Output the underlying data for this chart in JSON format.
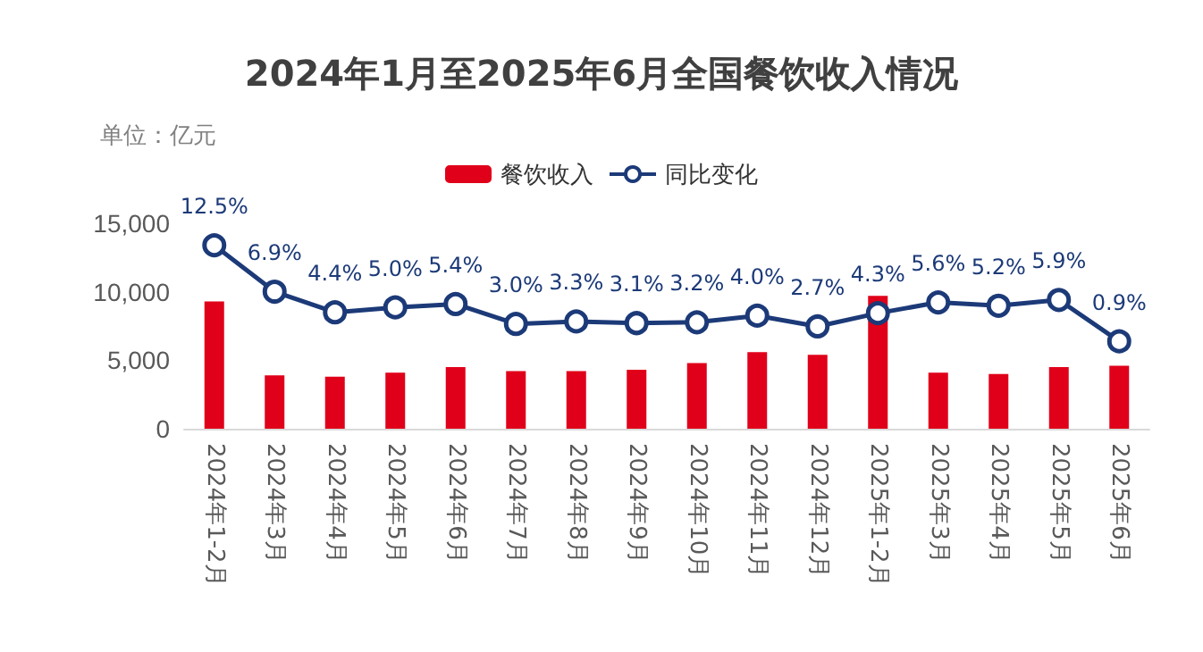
{
  "chart_data": {
    "type": "bar",
    "title": "2024年1月至2025年6月全国餐饮收入情况",
    "ylabel": "单位：亿元",
    "categories": [
      "2024年1-2月",
      "2024年3月",
      "2024年4月",
      "2024年5月",
      "2024年6月",
      "2024年7月",
      "2024年8月",
      "2024年9月",
      "2024年10月",
      "2024年11月",
      "2024年12月",
      "2025年1-2月",
      "2025年3月",
      "2025年4月",
      "2025年5月",
      "2025年6月"
    ],
    "series": [
      {
        "name": "餐饮收入",
        "color": "#e0001a",
        "values": [
          9300,
          3900,
          3800,
          4100,
          4500,
          4200,
          4200,
          4300,
          4800,
          5600,
          5400,
          9700,
          4100,
          4000,
          4500,
          4600
        ]
      },
      {
        "name": "同比变化",
        "type": "line",
        "axis": "y2",
        "color": "#1c3a78",
        "values": [
          12.5,
          6.9,
          4.4,
          5.0,
          5.4,
          3.0,
          3.3,
          3.1,
          3.2,
          4.0,
          2.7,
          4.3,
          5.6,
          5.2,
          5.9,
          0.9
        ],
        "value_labels": [
          "12.5%",
          "6.9%",
          "4.4%",
          "5.0%",
          "5.4%",
          "3.0%",
          "3.3%",
          "3.1%",
          "3.2%",
          "4.0%",
          "2.7%",
          "4.3%",
          "5.6%",
          "5.2%",
          "5.9%",
          "0.9%"
        ]
      }
    ],
    "ylim": [
      0,
      15000
    ],
    "yticks": [
      {
        "value": 0,
        "label": "0"
      },
      {
        "value": 5000,
        "label": "5,000"
      },
      {
        "value": 10000,
        "label": "10,000"
      },
      {
        "value": 15000,
        "label": "15,000"
      }
    ],
    "tick_labels": "x_y",
    "marker": "circle",
    "line_style": "solid",
    "grid": false,
    "legend": "top"
  }
}
